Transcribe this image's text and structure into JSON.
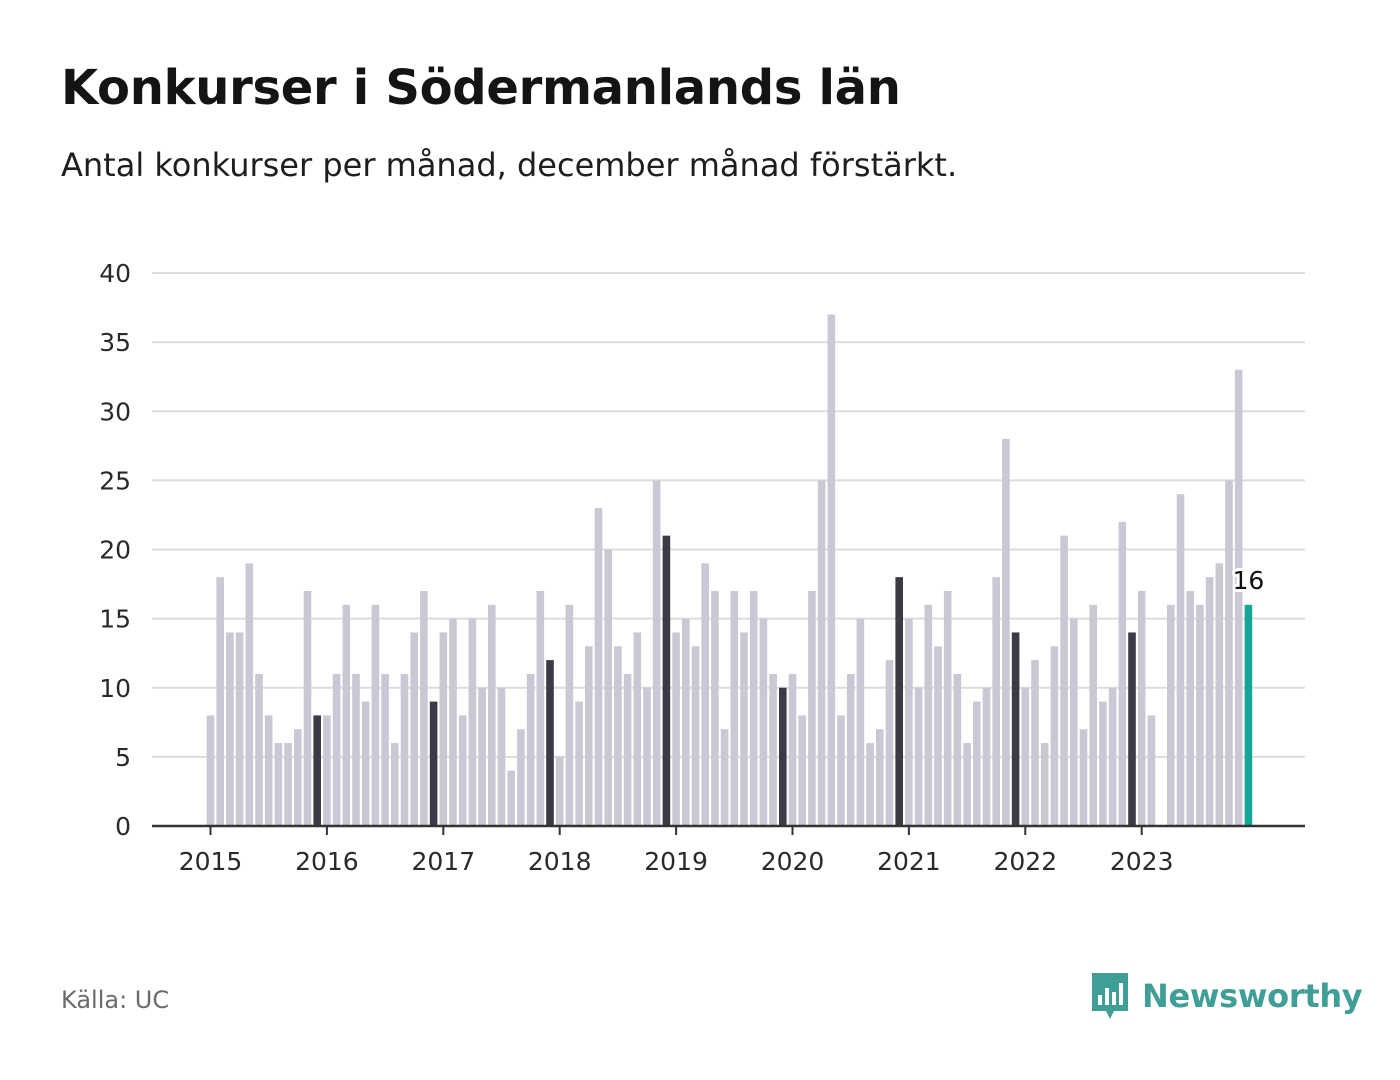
{
  "header": {
    "title": "Konkurser i Södermanlands län",
    "subtitle": "Antal konkurser per månad, december månad förstärkt."
  },
  "footer": {
    "source": "Källa: UC",
    "brand": "Newsworthy",
    "brand_icon": "bar-chart-speech-bubble-icon"
  },
  "colors": {
    "bar": "#c9c8d4",
    "december": "#3b3a47",
    "latest": "#14a699",
    "grid": "#dcdcdc",
    "axis": "#333333",
    "brand": "#3f9e95"
  },
  "chart_data": {
    "type": "bar",
    "title": "Konkurser i Södermanlands län",
    "subtitle": "Antal konkurser per månad, december månad förstärkt.",
    "ylim": [
      0,
      40
    ],
    "yticks": [
      0,
      5,
      10,
      15,
      20,
      25,
      30,
      35,
      40
    ],
    "grid": true,
    "x_tick_labels": [
      "2015",
      "2016",
      "2017",
      "2018",
      "2019",
      "2020",
      "2021",
      "2022",
      "2023"
    ],
    "start_month": "2015-01",
    "latest_label": "16",
    "years": [
      {
        "year": "2015",
        "values": [
          8,
          18,
          14,
          14,
          19,
          11,
          8,
          6,
          6,
          7,
          17,
          8
        ]
      },
      {
        "year": "2016",
        "values": [
          8,
          11,
          16,
          11,
          9,
          16,
          11,
          6,
          11,
          14,
          17,
          9
        ]
      },
      {
        "year": "2017",
        "values": [
          14,
          15,
          8,
          15,
          10,
          16,
          10,
          4,
          7,
          11,
          17,
          12
        ]
      },
      {
        "year": "2018",
        "values": [
          5,
          16,
          9,
          13,
          23,
          20,
          13,
          11,
          14,
          10,
          25,
          21
        ]
      },
      {
        "year": "2019",
        "values": [
          14,
          15,
          13,
          19,
          17,
          7,
          17,
          14,
          17,
          15,
          11,
          10
        ]
      },
      {
        "year": "2020",
        "values": [
          11,
          8,
          17,
          25,
          37,
          8,
          11,
          15,
          6,
          7,
          12,
          18
        ]
      },
      {
        "year": "2021",
        "values": [
          15,
          10,
          16,
          13,
          17,
          11,
          6,
          9,
          10,
          18,
          28,
          14
        ]
      },
      {
        "year": "2022",
        "values": [
          10,
          12,
          6,
          13,
          21,
          15,
          7,
          16,
          9,
          10,
          22,
          14
        ]
      },
      {
        "year": "2023",
        "values": [
          17,
          8,
          0,
          16,
          24,
          17,
          16,
          18,
          19,
          25,
          33,
          16
        ]
      }
    ]
  }
}
